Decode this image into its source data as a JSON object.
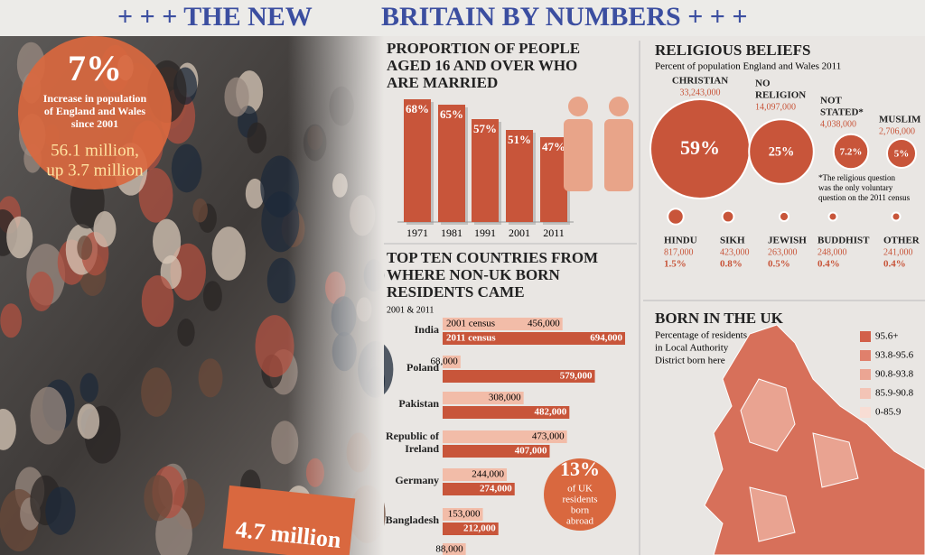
{
  "header": {
    "title_left": "+ + +  THE NEW",
    "title_right": "BRITAIN BY NUMBERS  + + +"
  },
  "population": {
    "headline": "7%",
    "text_lines": [
      "Increase in population",
      "of England and Wales",
      "since 2001"
    ],
    "total_lines": [
      "56.1 million,",
      "up 3.7 million"
    ],
    "bottom": "4.7 million"
  },
  "married": {
    "title_lines": [
      "PROPORTION OF PEOPLE",
      "AGED 16 AND OVER WHO",
      "ARE MARRIED"
    ],
    "categories": [
      "1971",
      "1981",
      "1991",
      "2001",
      "2011"
    ],
    "values": [
      68,
      65,
      57,
      51,
      47
    ],
    "value_labels": [
      "68%",
      "65%",
      "57%",
      "51%",
      "47%"
    ],
    "color": "#c8553a"
  },
  "religion": {
    "title": "RELIGIOUS BELIEFS",
    "subtitle": "Percent of population England and Wales 2011",
    "groups": [
      {
        "name": [
          "CHRISTIAN"
        ],
        "count": 33243000,
        "count_label": "33,243,000",
        "percent": 59,
        "percent_label": "59%"
      },
      {
        "name": [
          "NO",
          "RELIGION"
        ],
        "count": 14097000,
        "count_label": "14,097,000",
        "percent": 25,
        "percent_label": "25%"
      },
      {
        "name": [
          "NOT",
          "STATED*"
        ],
        "count": 4038000,
        "count_label": "4,038,000",
        "percent": 7.2,
        "percent_label": "7.2%"
      },
      {
        "name": [
          "MUSLIM"
        ],
        "count": 2706000,
        "count_label": "2,706,000",
        "percent": 5,
        "percent_label": "5%"
      },
      {
        "name": [
          "HINDU"
        ],
        "count": 817000,
        "count_label": "817,000",
        "percent": 1.5,
        "percent_label": "1.5%"
      },
      {
        "name": [
          "SIKH"
        ],
        "count": 423000,
        "count_label": "423,000",
        "percent": 0.8,
        "percent_label": "0.8%"
      },
      {
        "name": [
          "JEWISH"
        ],
        "count": 263000,
        "count_label": "263,000",
        "percent": 0.5,
        "percent_label": "0.5%"
      },
      {
        "name": [
          "BUDDHIST"
        ],
        "count": 248000,
        "count_label": "248,000",
        "percent": 0.4,
        "percent_label": "0.4%"
      },
      {
        "name": [
          "OTHER"
        ],
        "count": 241000,
        "count_label": "241,000",
        "percent": 0.4,
        "percent_label": "0.4%"
      }
    ],
    "note_lines": [
      "*The religious question",
      "was the only voluntary",
      "question on the 2011 census"
    ],
    "color": "#c8553a"
  },
  "countries": {
    "title_lines": [
      "TOP TEN COUNTRIES FROM",
      "WHERE NON-UK BORN",
      "RESIDENTS CAME"
    ],
    "subtitle": "2001 & 2011",
    "series_names": [
      "2001 census",
      "2011 census"
    ],
    "colors": [
      "#f2bca8",
      "#c8553a"
    ],
    "rows": [
      {
        "name": [
          "India"
        ],
        "v2001": 456000,
        "l2001": "456,000",
        "v2011": 694000,
        "l2011": "694,000"
      },
      {
        "name": [
          "Poland"
        ],
        "v2001": 68000,
        "l2001": "68,000",
        "v2011": 579000,
        "l2011": "579,000"
      },
      {
        "name": [
          "Pakistan"
        ],
        "v2001": 308000,
        "l2001": "308,000",
        "v2011": 482000,
        "l2011": "482,000"
      },
      {
        "name": [
          "Republic of",
          "Ireland"
        ],
        "v2001": 473000,
        "l2001": "473,000",
        "v2011": 407000,
        "l2011": "407,000"
      },
      {
        "name": [
          "Germany"
        ],
        "v2001": 244000,
        "l2001": "244,000",
        "v2011": 274000,
        "l2011": "274,000"
      },
      {
        "name": [
          "Bangladesh"
        ],
        "v2001": 153000,
        "l2001": "153,000",
        "v2011": 212000,
        "l2011": "212,000"
      },
      {
        "name": null,
        "v2001": 88000,
        "l2001": "88,000"
      }
    ]
  },
  "abroad": {
    "value": "13%",
    "text_lines": [
      "of UK",
      "residents",
      "born",
      "abroad"
    ]
  },
  "born_uk": {
    "title": "BORN IN THE UK",
    "subtitle_lines": [
      "Percentage of residents",
      "in Local Authority",
      "District born here"
    ],
    "legend": [
      {
        "label": "95.6+",
        "color": "#d2604a"
      },
      {
        "label": "93.8-95.6",
        "color": "#e0806c"
      },
      {
        "label": "90.8-93.8",
        "color": "#eba593"
      },
      {
        "label": "85.9-90.8",
        "color": "#f3c4b6"
      },
      {
        "label": "0-85.9",
        "color": "#f8ddd4"
      }
    ]
  }
}
